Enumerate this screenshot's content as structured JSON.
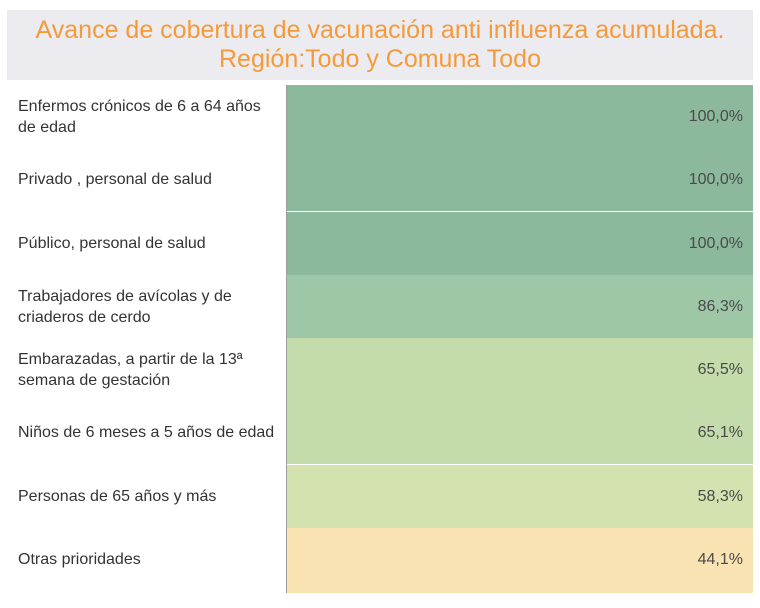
{
  "title": {
    "line1": "Avance  de cobertura de vacunación anti influenza acumulada.",
    "line2": "Región:Todo y Comuna Todo"
  },
  "chart_data": {
    "type": "table",
    "title": "Avance  de cobertura de vacunación anti influenza acumulada. Región:Todo y Comuna Todo",
    "categories": [
      "Enfermos crónicos de 6 a 64 años de edad",
      "Privado , personal de salud",
      "Público, personal de salud",
      "Trabajadores de avícolas y de criaderos de cerdo",
      "Embarazadas, a partir de la 13ª semana de gestación",
      "Niños de 6 meses a 5 años de edad",
      "Personas de 65 años y más",
      "Otras prioridades"
    ],
    "values": [
      100.0,
      100.0,
      100.0,
      86.3,
      65.5,
      65.1,
      58.3,
      44.1
    ],
    "value_labels": [
      "100,0%",
      "100,0%",
      "100,0%",
      "86,3%",
      "65,5%",
      "65,1%",
      "58,3%",
      "44,1%"
    ],
    "colors": [
      "#8cb89c",
      "#8cb89c",
      "#8cb89c",
      "#9ec7a8",
      "#c4dcab",
      "#c4dcab",
      "#d4e2b0",
      "#f9e3b2"
    ]
  }
}
